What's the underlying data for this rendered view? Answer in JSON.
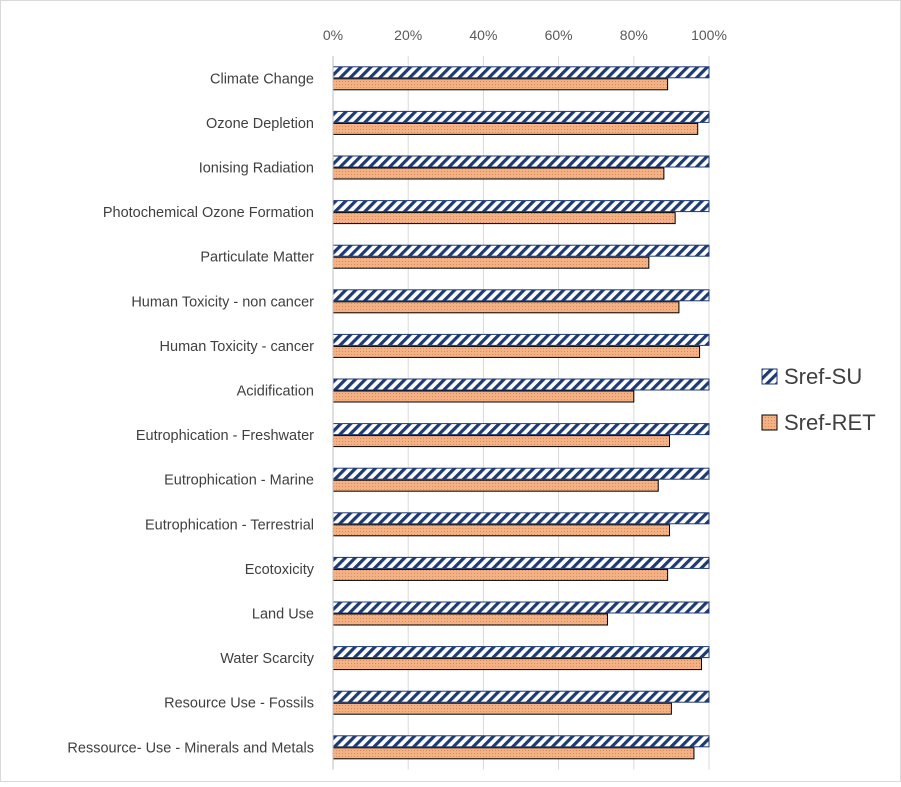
{
  "chart_data": {
    "type": "bar",
    "orientation": "horizontal",
    "categories": [
      "Climate Change",
      "Ozone Depletion",
      "Ionising Radiation",
      "Photochemical Ozone Formation",
      "Particulate Matter",
      "Human Toxicity - non cancer",
      "Human Toxicity - cancer",
      "Acidification",
      "Eutrophication - Freshwater",
      "Eutrophication - Marine",
      "Eutrophication - Terrestrial",
      "Ecotoxicity",
      "Land Use",
      "Water Scarcity",
      "Resource Use - Fossils",
      "Ressource- Use - Minerals and Metals"
    ],
    "series": [
      {
        "name": "Sref-SU",
        "color": "#1f3b73",
        "pattern": "diagonal-hatch",
        "values": [
          100,
          100,
          100,
          100,
          100,
          100,
          100,
          100,
          100,
          100,
          100,
          100,
          100,
          100,
          100,
          100
        ]
      },
      {
        "name": "Sref-RET",
        "color": "#f4b183",
        "pattern": "dotted-fill",
        "values": [
          89,
          97,
          88,
          91,
          84,
          92,
          97.5,
          80,
          89.5,
          86.5,
          89.5,
          89,
          73,
          98,
          90,
          96
        ]
      }
    ],
    "xlim": [
      0,
      100
    ],
    "x_ticks": [
      "0%",
      "20%",
      "40%",
      "60%",
      "80%",
      "100%"
    ],
    "x_axis_position": "top",
    "grid": true,
    "legend_position": "right",
    "title": "",
    "xlabel": "",
    "ylabel": ""
  }
}
